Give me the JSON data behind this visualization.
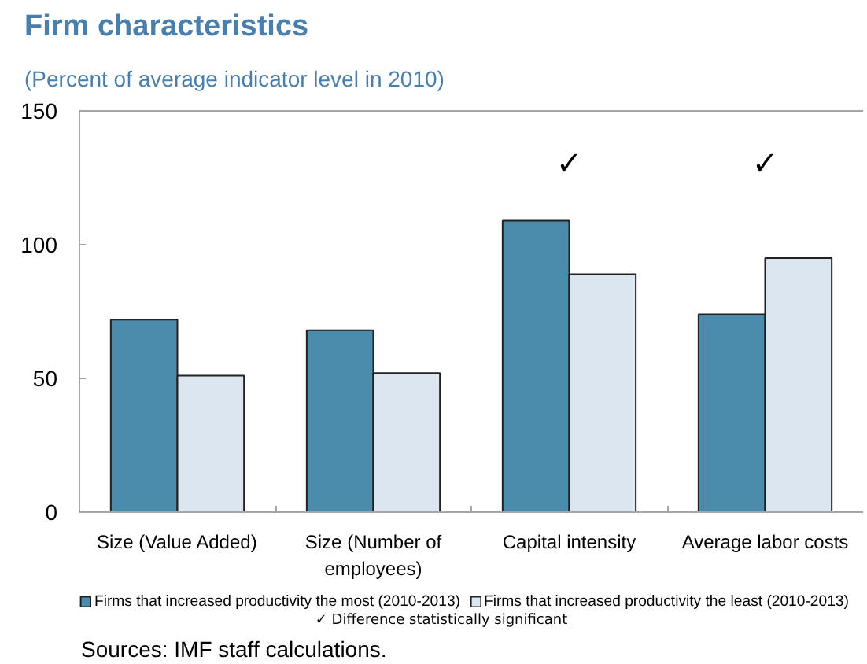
{
  "chart_data": {
    "type": "bar",
    "title": "Firm characteristics",
    "subtitle": "(Percent of average indicator level in 2010)",
    "categories": [
      "Size (Value Added)",
      "Size (Number of employees)",
      "Capital intensity",
      "Average labor costs"
    ],
    "series": [
      {
        "name": "Firms that increased productivity the most (2010-2013)",
        "color": "#4b8bab",
        "values": [
          72,
          68,
          109,
          74
        ]
      },
      {
        "name": "Firms that increased productivity the least (2010-2013)",
        "color": "#dce6f1",
        "values": [
          51,
          52,
          89,
          95
        ]
      }
    ],
    "ylim": [
      0,
      150
    ],
    "yticks": [
      0,
      50,
      100,
      150
    ],
    "grid": false,
    "legend": "bottom",
    "annotations": [
      "✓",
      "✓",
      "✓ Difference statistically significant",
      "Sources: IMF staff calculations."
    ]
  }
}
